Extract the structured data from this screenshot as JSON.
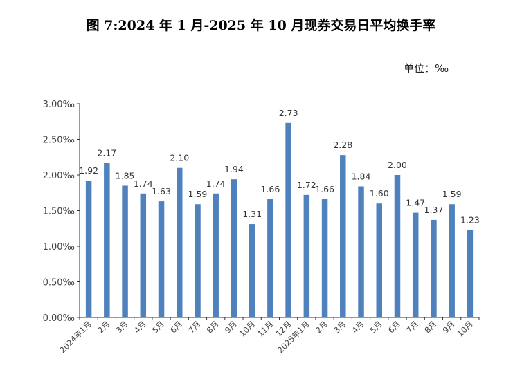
{
  "title": "图 7:2024 年 1 月-2025 年 10 月现券交易日平均换手率",
  "unit_label": "单位：‰",
  "chart_data": {
    "type": "bar",
    "title": "图 7:2024 年 1 月-2025 年 10 月现券交易日平均换手率",
    "categories": [
      "2024年1月",
      "2月",
      "3月",
      "4月",
      "5月",
      "6月",
      "7月",
      "8月",
      "9月",
      "10月",
      "11月",
      "12月",
      "2025年1月",
      "2月",
      "3月",
      "4月",
      "5月",
      "6月",
      "7月",
      "8月",
      "9月",
      "10月"
    ],
    "values": [
      1.92,
      2.17,
      1.85,
      1.74,
      1.63,
      2.1,
      1.59,
      1.74,
      1.94,
      1.31,
      1.66,
      2.73,
      1.72,
      1.66,
      2.28,
      1.84,
      1.6,
      2.0,
      1.47,
      1.37,
      1.59,
      1.23
    ],
    "data_labels": [
      "1.92",
      "2.17",
      "1.85",
      "1.74",
      "1.63",
      "2.10",
      "1.59",
      "1.74",
      "1.94",
      "1.31",
      "1.66",
      "2.73",
      "1.72",
      "1.66",
      "2.28",
      "1.84",
      "1.60",
      "2.00",
      "1.47",
      "1.37",
      "1.59",
      "1.23"
    ],
    "yticks": [
      0,
      0.5,
      1.0,
      1.5,
      2.0,
      2.5,
      3.0
    ],
    "ytick_labels": [
      "0.00‰",
      "0.50‰",
      "1.00‰",
      "1.50‰",
      "2.00‰",
      "2.50‰",
      "3.00‰"
    ],
    "ylim": [
      0,
      3.0
    ],
    "grid": false,
    "bar_color": "#4f81bd",
    "axis_color": "#333333",
    "label_color": "#333333"
  }
}
